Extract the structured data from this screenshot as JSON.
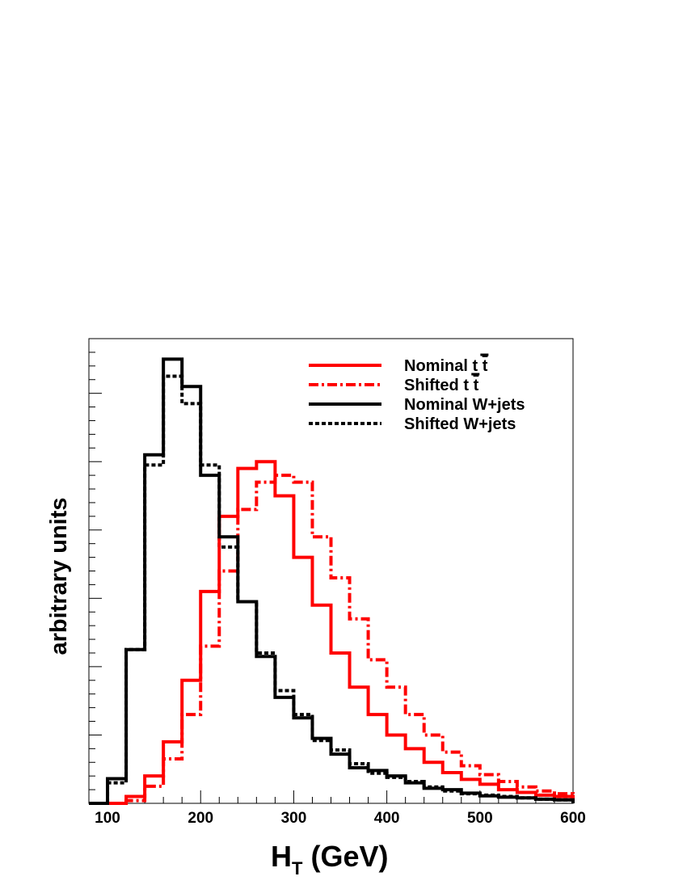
{
  "chart_data": {
    "type": "histogram",
    "xlabel_main": "H",
    "xlabel_sub": "T",
    "xlabel_unit": " (GeV)",
    "ylabel": "arbitrary units",
    "xlim": [
      80,
      600
    ],
    "ylim": [
      0,
      0.068
    ],
    "x_ticks": [
      100,
      200,
      300,
      400,
      500,
      600
    ],
    "bin_edges": [
      80,
      100,
      120,
      140,
      160,
      180,
      200,
      220,
      240,
      260,
      280,
      300,
      320,
      340,
      360,
      380,
      400,
      420,
      440,
      460,
      480,
      500,
      520,
      540,
      560,
      580,
      600
    ],
    "series": [
      {
        "name": "Nominal t̄t",
        "legend_main": "Nominal ",
        "legend_t": "t",
        "legend_tbar": "t",
        "color": "#ff0000",
        "style": "solid",
        "values": [
          0.0,
          0.0,
          0.001,
          0.004,
          0.009,
          0.018,
          0.031,
          0.042,
          0.049,
          0.05,
          0.045,
          0.036,
          0.029,
          0.022,
          0.017,
          0.013,
          0.01,
          0.008,
          0.006,
          0.0045,
          0.0035,
          0.0028,
          0.002,
          0.0016,
          0.0012,
          0.001
        ]
      },
      {
        "name": "Shifted t̄t",
        "legend_main": "Shifted ",
        "legend_t": "t",
        "legend_tbar": "t",
        "color": "#ff0000",
        "style": "dashdot",
        "values": [
          0.0,
          0.0,
          0.0004,
          0.0025,
          0.0065,
          0.013,
          0.023,
          0.034,
          0.043,
          0.047,
          0.048,
          0.047,
          0.039,
          0.033,
          0.027,
          0.021,
          0.017,
          0.013,
          0.01,
          0.0075,
          0.0055,
          0.0042,
          0.0032,
          0.0024,
          0.0018,
          0.0014
        ]
      },
      {
        "name": "Nominal W+jets",
        "legend_main": "Nominal W+jets",
        "color": "#000000",
        "style": "solid",
        "values": [
          0.0,
          0.0036,
          0.0225,
          0.051,
          0.065,
          0.061,
          0.048,
          0.039,
          0.0295,
          0.0215,
          0.0155,
          0.0125,
          0.0095,
          0.0072,
          0.0052,
          0.0048,
          0.004,
          0.003,
          0.0022,
          0.002,
          0.0015,
          0.0011,
          0.0009,
          0.0008,
          0.0006,
          0.0005
        ]
      },
      {
        "name": "Shifted W+jets",
        "legend_main": "Shifted W+jets",
        "color": "#000000",
        "style": "dotted",
        "values": [
          0.0,
          0.003,
          0.0225,
          0.0495,
          0.0625,
          0.0585,
          0.0495,
          0.0375,
          0.0295,
          0.022,
          0.0165,
          0.013,
          0.0092,
          0.0078,
          0.0058,
          0.0044,
          0.0038,
          0.0032,
          0.0024,
          0.0018,
          0.0014,
          0.0012,
          0.001,
          0.0008,
          0.0006,
          0.0005
        ]
      }
    ],
    "legend_position": "top-right"
  }
}
